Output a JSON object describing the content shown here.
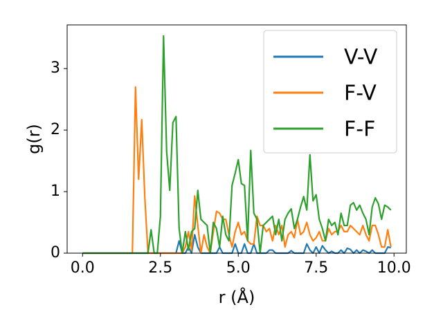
{
  "chart_data": {
    "type": "line",
    "xlabel": "r (Å)",
    "ylabel": "g(r)",
    "x": [
      0,
      0.1,
      0.2,
      0.3,
      0.4,
      0.5,
      0.6,
      0.7,
      0.8,
      0.9,
      1.0,
      1.1,
      1.2,
      1.3,
      1.4,
      1.5,
      1.6,
      1.7,
      1.8,
      1.9,
      2.0,
      2.1,
      2.2,
      2.3,
      2.4,
      2.5,
      2.6,
      2.7,
      2.8,
      2.9,
      3.0,
      3.1,
      3.2,
      3.3,
      3.4,
      3.5,
      3.6,
      3.7,
      3.8,
      3.9,
      4.0,
      4.1,
      4.2,
      4.3,
      4.4,
      4.5,
      4.6,
      4.7,
      4.8,
      4.9,
      5.0,
      5.1,
      5.2,
      5.3,
      5.4,
      5.5,
      5.6,
      5.7,
      5.8,
      5.9,
      6.0,
      6.1,
      6.2,
      6.3,
      6.4,
      6.5,
      6.6,
      6.7,
      6.8,
      6.9,
      7.0,
      7.1,
      7.2,
      7.3,
      7.4,
      7.5,
      7.6,
      7.7,
      7.8,
      7.9,
      8.0,
      8.1,
      8.2,
      8.3,
      8.4,
      8.5,
      8.6,
      8.7,
      8.8,
      8.9,
      9.0,
      9.1,
      9.2,
      9.3,
      9.4,
      9.5,
      9.6,
      9.7,
      9.8,
      9.9
    ],
    "series": [
      {
        "name": "V-V",
        "color": "#1f77b4",
        "values": [
          0,
          0,
          0,
          0,
          0,
          0,
          0,
          0,
          0,
          0,
          0,
          0,
          0,
          0,
          0,
          0,
          0,
          0,
          0,
          0,
          0,
          0,
          0,
          0,
          0,
          0,
          0,
          0,
          0,
          0,
          0,
          0.2,
          0,
          0,
          0.1,
          0,
          0.3,
          0.1,
          0,
          0,
          0,
          0,
          0,
          0,
          0.1,
          0,
          0,
          0,
          0,
          0.15,
          0,
          0,
          0.15,
          0,
          0,
          0.15,
          0,
          0,
          0,
          0,
          0.05,
          0.05,
          0,
          0,
          0,
          0,
          0,
          0.04,
          0,
          0,
          0,
          0,
          0.15,
          0.05,
          0,
          0.1,
          0,
          0.12,
          0.05,
          0,
          0.03,
          0,
          0,
          0.05,
          0,
          0.08,
          0.06,
          0,
          0.05,
          0,
          0.05,
          0.03,
          0,
          0.05,
          0,
          0,
          0,
          0,
          0.1,
          0.09
        ]
      },
      {
        "name": "F-V",
        "color": "#ff7f0e",
        "values": [
          0,
          0,
          0,
          0,
          0,
          0,
          0,
          0,
          0,
          0,
          0,
          0,
          0,
          0,
          0,
          0,
          0,
          2.7,
          1.2,
          2.17,
          0.9,
          0,
          0,
          0,
          0,
          0,
          0,
          0,
          0,
          0,
          0,
          0,
          0,
          0.1,
          0.35,
          0.05,
          0.93,
          0.45,
          0,
          0.3,
          0.1,
          0,
          0.35,
          0.68,
          0.65,
          0.55,
          0.55,
          0.3,
          0.1,
          0.35,
          0.5,
          0.3,
          0.35,
          0.2,
          0.15,
          0.15,
          0.6,
          0.45,
          0.45,
          0.35,
          0.4,
          0.2,
          0.45,
          0.3,
          0.45,
          0.1,
          0.3,
          0.35,
          0.25,
          0.55,
          0.3,
          0.35,
          0.5,
          0.3,
          0.2,
          0.25,
          0.35,
          0.2,
          0.2,
          0.4,
          0.3,
          0.35,
          0.35,
          0.45,
          0.35,
          0.35,
          0.45,
          0.4,
          0.35,
          0.3,
          0.45,
          0.3,
          0.2,
          0.45,
          0.45,
          0.3,
          0.1,
          0.1,
          0.38,
          0.1
        ]
      },
      {
        "name": "F-F",
        "color": "#2ca02c",
        "values": [
          0,
          0,
          0,
          0,
          0,
          0,
          0,
          0,
          0,
          0,
          0,
          0,
          0,
          0,
          0,
          0,
          0,
          0,
          0,
          0,
          0,
          0,
          0.38,
          0,
          0,
          0.6,
          3.53,
          1.65,
          1.02,
          2.12,
          2.22,
          0.4,
          0,
          0.35,
          0.05,
          0.35,
          0.4,
          1.02,
          0.55,
          0.5,
          0.45,
          0,
          0.5,
          0.4,
          0.1,
          0.6,
          0.3,
          0.2,
          1.1,
          1.3,
          1.52,
          1.13,
          1.1,
          0.2,
          1.67,
          0.65,
          0.55,
          0,
          0.45,
          0.5,
          0.55,
          0.6,
          0.3,
          0.55,
          0.2,
          0.55,
          0.65,
          0.72,
          0.4,
          0.55,
          0.75,
          0.92,
          0.7,
          1.6,
          0.85,
          0.95,
          0.55,
          0.4,
          0.2,
          0.55,
          0.45,
          0.5,
          0.3,
          0.65,
          0.45,
          0.45,
          0.78,
          0.82,
          0.7,
          0.78,
          0.65,
          0.55,
          0.3,
          0.75,
          0.9,
          0.8,
          0.55,
          0.78,
          0.75,
          0.7
        ]
      }
    ],
    "xlim": [
      -0.495,
      10.395
    ],
    "ylim": [
      0,
      3.71
    ],
    "xticks": [
      {
        "value": 0,
        "label": "0.0"
      },
      2.5,
      {
        "value": 5,
        "label": "5.0"
      },
      7.5,
      {
        "value": 10,
        "label": "10.0"
      }
    ],
    "yticks": [
      0,
      1,
      2,
      3
    ],
    "legend": "upper right"
  }
}
